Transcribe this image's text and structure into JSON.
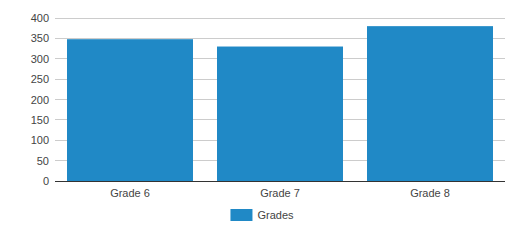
{
  "chart_data": {
    "type": "bar",
    "categories": [
      "Grade 6",
      "Grade 7",
      "Grade 8"
    ],
    "series": [
      {
        "name": "Grades",
        "color": "#2089c6",
        "values": [
          348,
          330,
          380
        ]
      }
    ],
    "ylim": [
      0,
      400
    ],
    "yticks": [
      0,
      50,
      100,
      150,
      200,
      250,
      300,
      350,
      400
    ],
    "grid": true,
    "legend": "bottom"
  }
}
